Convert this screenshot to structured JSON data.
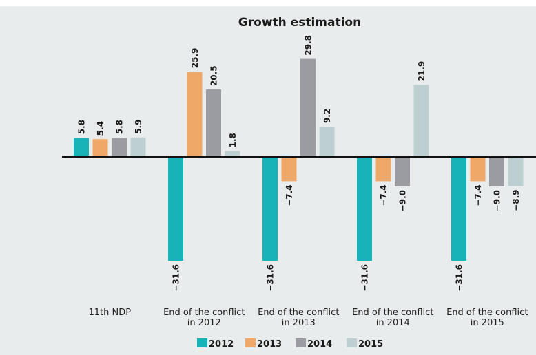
{
  "chart_data": {
    "type": "bar",
    "title": "Growth estimation",
    "xlabel": "",
    "ylabel": "",
    "categories": [
      [
        "11th NDP"
      ],
      [
        "End of the conflict",
        "in 2012"
      ],
      [
        "End of the conflict",
        "in 2013"
      ],
      [
        "End of the conflict",
        "in 2014"
      ],
      [
        "End of the conflict",
        "in 2015"
      ]
    ],
    "series": [
      {
        "name": "2012",
        "color": "#17b3b8",
        "values": [
          5.8,
          -31.6,
          -31.6,
          -31.6,
          -31.6
        ]
      },
      {
        "name": "2013",
        "color": "#f0a868",
        "values": [
          5.4,
          25.9,
          -7.4,
          -7.4,
          -7.4
        ]
      },
      {
        "name": "2014",
        "color": "#9a9ca1",
        "values": [
          5.8,
          20.5,
          29.8,
          -9.0,
          -9.0
        ]
      },
      {
        "name": "2015",
        "color": "#bdcfd1",
        "values": [
          5.9,
          1.8,
          9.2,
          21.9,
          -8.9
        ]
      }
    ],
    "ylim": [
      -31.6,
      29.8
    ],
    "grid": false,
    "legend_position": "bottom-center",
    "data_labels": true,
    "value_format": "one-decimal, minus sign for negatives"
  }
}
